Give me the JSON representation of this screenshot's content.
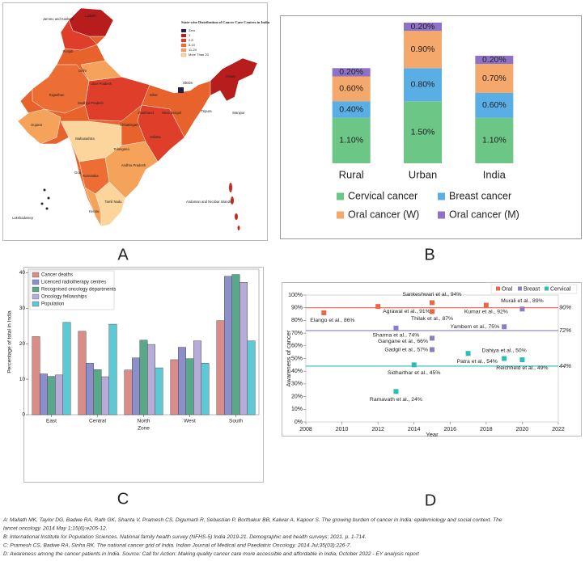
{
  "map": {
    "title": "State-wise Distribution of Cancer Care Centres in India",
    "legend": [
      {
        "label": "Zero",
        "color": "#1d2340"
      },
      {
        "label": "1",
        "color": "#b81d1d"
      },
      {
        "label": "2-5",
        "color": "#df3f2a"
      },
      {
        "label": "6-10",
        "color": "#ec6e35"
      },
      {
        "label": "11-20",
        "color": "#f5a35a"
      },
      {
        "label": "More Than 20",
        "color": "#fbd59c"
      }
    ],
    "regions": [
      "Jammu and Kashmir",
      "Ladakh",
      "Punjab",
      "Delhi",
      "Rajasthan",
      "Uttar Pradesh",
      "Gujarat",
      "Madhya Pradesh",
      "Bihar",
      "Jharkhand",
      "West Bengal",
      "Chhattisgarh",
      "Odisha",
      "Maharashtra",
      "Telangana",
      "Goa",
      "Karnataka",
      "Andhra Pradesh",
      "Tamil Nadu",
      "Kerala",
      "Lakshadweep",
      "Sikkim",
      "Assam",
      "Tripura",
      "Manipur",
      "Andaman and Nicobar Islands"
    ]
  },
  "chart_data": [
    {
      "type": "bar",
      "stacked": true,
      "categories": [
        "Rural",
        "Urban",
        "India"
      ],
      "series": [
        {
          "name": "Cervical cancer",
          "color": "#6cc685",
          "values": [
            1.1,
            1.5,
            1.1
          ],
          "value_labels": [
            "1.10%",
            "1.50%",
            "1.10%"
          ]
        },
        {
          "name": "Breast cancer",
          "color": "#59aee6",
          "values": [
            0.4,
            0.8,
            0.6
          ],
          "value_labels": [
            "0.40%",
            "0.80%",
            "0.60%"
          ]
        },
        {
          "name": "Oral cancer (W)",
          "color": "#f5a86b",
          "values": [
            0.6,
            0.9,
            0.7
          ],
          "value_labels": [
            "0.60%",
            "0.90%",
            "0.70%"
          ]
        },
        {
          "name": "Oral cancer (M)",
          "color": "#8d72c8",
          "values": [
            0.2,
            0.2,
            0.2
          ],
          "value_labels": [
            "0.20%",
            "0.20%",
            "0.20%"
          ]
        }
      ]
    },
    {
      "type": "bar",
      "stacked": false,
      "categories": [
        "East",
        "Central",
        "North",
        "West",
        "South"
      ],
      "x_label": "Zone",
      "y_label": "Percentage of total in India",
      "ylim": [
        0,
        41
      ],
      "yticks": [
        0,
        10,
        20,
        30,
        40
      ],
      "series": [
        {
          "name": "Cancer deaths",
          "color": "#d98c88",
          "values": [
            22,
            23.5,
            12.6,
            15.5,
            26.5
          ]
        },
        {
          "name": "Licenced radiotherapy centres",
          "color": "#8d8fca",
          "values": [
            11.5,
            14.5,
            16,
            19,
            39
          ]
        },
        {
          "name": "Recognised oncology departments",
          "color": "#5aa88a",
          "values": [
            10.8,
            12.7,
            21,
            15.8,
            39.5
          ]
        },
        {
          "name": "Oncology fellowships",
          "color": "#b7abd8",
          "values": [
            11.2,
            10.7,
            19.8,
            20.8,
            37.3
          ]
        },
        {
          "name": "Population",
          "color": "#5ec8d4",
          "values": [
            26,
            25.5,
            13.2,
            14.5,
            20.8
          ]
        }
      ]
    },
    {
      "type": "scatter",
      "x_label": "Year",
      "y_label": "Awareness of cancer",
      "xlim": [
        2008,
        2022
      ],
      "xticks": [
        2008,
        2010,
        2012,
        2014,
        2016,
        2018,
        2020,
        2022
      ],
      "ylim": [
        0,
        100
      ],
      "yticks": [
        {
          "value": 0,
          "label": "0%"
        },
        {
          "value": 10,
          "label": "10%"
        },
        {
          "value": 20,
          "label": "20%"
        },
        {
          "value": 30,
          "label": "30%"
        },
        {
          "value": 40,
          "label": "40%"
        },
        {
          "value": 50,
          "label": "50%"
        },
        {
          "value": 60,
          "label": "60%"
        },
        {
          "value": 70,
          "label": "70%"
        },
        {
          "value": 80,
          "label": "80%"
        },
        {
          "value": 90,
          "label": "90%"
        },
        {
          "value": 100,
          "label": "100%"
        }
      ],
      "reference_lines": [
        {
          "value": 90,
          "label": "90%",
          "color": "#f0654a"
        },
        {
          "value": 72,
          "label": "72%",
          "color": "#8c7fc0"
        },
        {
          "value": 44,
          "label": "44%",
          "color": "#2bbfb2"
        }
      ],
      "series": [
        {
          "name": "Oral",
          "color": "#f0654a",
          "x": [
            2009,
            2012,
            2015,
            2015,
            2018
          ],
          "values": [
            86,
            91,
            94,
            87,
            92
          ],
          "value_labels": [
            "Elango et al., 86%",
            "Agrawal et al., 91%",
            "Sankeshwari et al., 94%",
            "Thilak et al., 87%",
            "Kumar et al., 92%"
          ]
        },
        {
          "name": "Breast",
          "color": "#8c7fc0",
          "x": [
            2020,
            2013,
            2019,
            2015,
            2015
          ],
          "values": [
            89,
            74,
            75,
            66,
            57
          ],
          "value_labels": [
            "Murali et al., 89%",
            "Sharma et al., 74%",
            "Yambem et al., 75%",
            "Gangane et al., 66%",
            "Gadgil et al., 57%"
          ]
        },
        {
          "name": "Cervical",
          "color": "#2bbfb2",
          "x": [
            2019,
            2017,
            2020,
            2014,
            2013
          ],
          "values": [
            50,
            54,
            49,
            45,
            24
          ],
          "value_labels": [
            "Dahiya et al., 50%",
            "Patra et al., 54%",
            "Reichheld et al., 49%",
            "Sidharthar et al., 45%",
            "Ramavath et al., 24%"
          ]
        }
      ]
    }
  ],
  "panel_labels": [
    "A",
    "B",
    "C",
    "D"
  ],
  "references": [
    "A: Mallath MK, Taylor DG, Badwe RA, Rath GK, Shanta V, Pramesh CS, Digumarti R, Sebastian P, Borthakur BB, Kalwar A, Kapoor S. The growing burden of cancer in India: epidemiology and social context. The",
    "lancet oncology. 2014 May 1;15(6):e205-12.",
    "B: International Institute for Population Sciences. National family health survey (NFHS-5) India 2019-21. Demographic and health surveys; 2021. p. 1-714.",
    "C: Pramesh CS, Badwe RA, Sinha RK. The national cancer grid of India. Indian Journal of Medical and Paediatric Oncology. 2014 Jul;35(03):226-7.",
    "D: Awareness among the cancer patients in India. Source: Call for Action: Making quality cancer care more accessible and affordable in India, October 2022 - EY analysis report"
  ]
}
